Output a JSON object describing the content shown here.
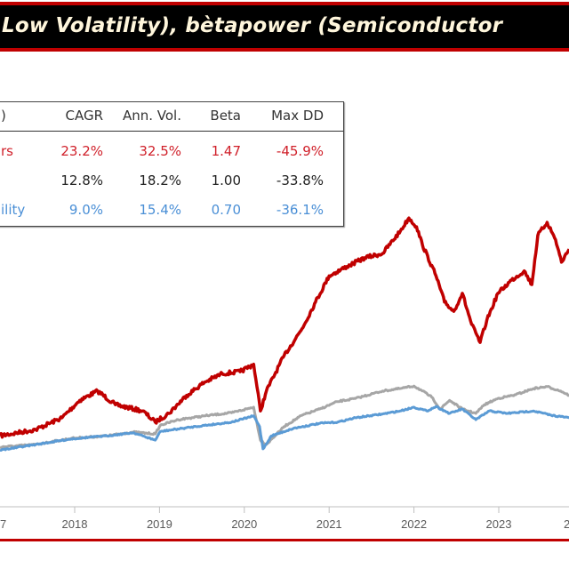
{
  "title": "Low Volatility), bètapower (Semiconductor",
  "stats_table": {
    "headers": [
      ")",
      "CAGR",
      "Ann. Vol.",
      "Beta",
      "Max DD"
    ],
    "rows": [
      {
        "label": "rs",
        "cagr": "23.2%",
        "vol": "32.5%",
        "beta": "1.47",
        "maxdd": "-45.9%",
        "color": "#d0202a"
      },
      {
        "label": "",
        "cagr": "12.8%",
        "vol": "18.2%",
        "beta": "1.00",
        "maxdd": "-33.8%",
        "color": "#222222"
      },
      {
        "label": "ility",
        "cagr": "9.0%",
        "vol": "15.4%",
        "beta": "0.70",
        "maxdd": "-36.1%",
        "color": "#4a8fd6"
      }
    ]
  },
  "chart_data": {
    "type": "line",
    "title": "Low Volatility), bètapower (Semiconductor",
    "x_tick_labels": [
      "7",
      "2018",
      "2019",
      "2020",
      "2021",
      "2022",
      "2023",
      "2"
    ],
    "grid": false,
    "y_axis_labels_visible": false,
    "series": [
      {
        "color": "#c00000",
        "x": [
          2017.12,
          2017.54,
          2017.85,
          2018.06,
          2018.27,
          2018.48,
          2018.8,
          2018.95,
          2019.11,
          2019.32,
          2019.53,
          2019.74,
          2019.95,
          2020.11,
          2020.19,
          2020.26,
          2020.47,
          2020.68,
          2020.84,
          2021.0,
          2021.21,
          2021.42,
          2021.63,
          2021.84,
          2021.94,
          2022.03,
          2022.1,
          2022.26,
          2022.36,
          2022.47,
          2022.57,
          2022.68,
          2022.78,
          2022.86,
          2022.99,
          2023.15,
          2023.3,
          2023.39,
          2023.46,
          2023.57,
          2023.67,
          2023.74,
          2023.83
        ],
        "y": [
          114,
          124,
          143,
          171,
          186,
          164,
          154,
          136,
          150,
          179,
          200,
          214,
          217,
          229,
          154,
          186,
          243,
          286,
          329,
          371,
          386,
          400,
          407,
          443,
          464,
          450,
          421,
          371,
          329,
          314,
          343,
          293,
          264,
          300,
          343,
          364,
          379,
          357,
          436,
          457,
          429,
          393,
          414
        ]
      },
      {
        "color": "#a6a6a6",
        "x": [
          2017.12,
          2017.54,
          2017.96,
          2018.38,
          2018.69,
          2018.95,
          2019.01,
          2019.22,
          2019.53,
          2019.85,
          2020.11,
          2020.19,
          2020.26,
          2020.47,
          2020.68,
          2020.89,
          2021.1,
          2021.31,
          2021.63,
          2021.84,
          2022.0,
          2022.1,
          2022.21,
          2022.31,
          2022.42,
          2022.57,
          2022.73,
          2022.83,
          2022.99,
          2023.2,
          2023.41,
          2023.57,
          2023.73,
          2023.83
        ],
        "y": [
          96,
          100,
          110,
          114,
          120,
          117,
          131,
          140,
          146,
          151,
          160,
          107,
          100,
          129,
          147,
          157,
          169,
          174,
          186,
          190,
          194,
          186,
          176,
          157,
          171,
          157,
          150,
          164,
          174,
          180,
          190,
          193,
          186,
          179
        ]
      },
      {
        "color": "#5b9bd5",
        "x": [
          2017.12,
          2017.54,
          2017.96,
          2018.38,
          2018.69,
          2018.95,
          2019.01,
          2019.43,
          2019.85,
          2020.11,
          2020.18,
          2020.22,
          2020.32,
          2020.58,
          2020.89,
          2021.1,
          2021.31,
          2021.63,
          2021.84,
          2022.0,
          2022.15,
          2022.26,
          2022.42,
          2022.57,
          2022.73,
          2022.89,
          2023.1,
          2023.41,
          2023.62,
          2023.83
        ],
        "y": [
          91,
          100,
          109,
          114,
          119,
          107,
          121,
          129,
          136,
          146,
          129,
          93,
          114,
          126,
          134,
          136,
          143,
          149,
          154,
          160,
          154,
          161,
          150,
          157,
          140,
          154,
          150,
          154,
          147,
          143
        ]
      }
    ]
  }
}
